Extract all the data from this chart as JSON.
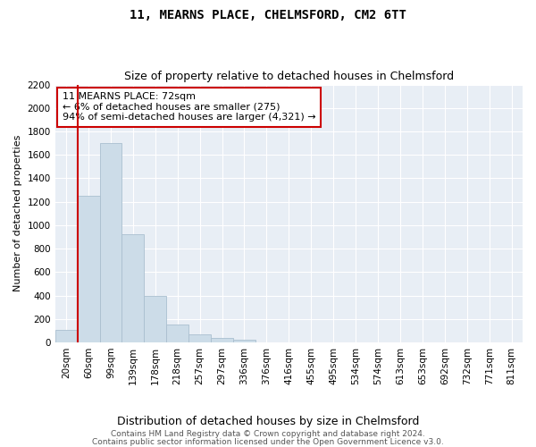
{
  "title": "11, MEARNS PLACE, CHELMSFORD, CM2 6TT",
  "subtitle": "Size of property relative to detached houses in Chelmsford",
  "xlabel": "Distribution of detached houses by size in Chelmsford",
  "ylabel": "Number of detached properties",
  "bar_labels": [
    "20sqm",
    "60sqm",
    "99sqm",
    "139sqm",
    "178sqm",
    "218sqm",
    "257sqm",
    "297sqm",
    "336sqm",
    "376sqm",
    "416sqm",
    "455sqm",
    "495sqm",
    "534sqm",
    "574sqm",
    "613sqm",
    "653sqm",
    "692sqm",
    "732sqm",
    "771sqm",
    "811sqm"
  ],
  "bar_values": [
    110,
    1250,
    1700,
    925,
    400,
    150,
    65,
    40,
    25,
    0,
    0,
    0,
    0,
    0,
    0,
    0,
    0,
    0,
    0,
    0,
    0
  ],
  "bar_color": "#ccdce8",
  "bar_edgecolor": "#aabfcf",
  "vline_color": "#cc0000",
  "vline_pos": 0.5,
  "ylim": [
    0,
    2200
  ],
  "yticks": [
    0,
    200,
    400,
    600,
    800,
    1000,
    1200,
    1400,
    1600,
    1800,
    2000,
    2200
  ],
  "annotation_text": "11 MEARNS PLACE: 72sqm\n← 6% of detached houses are smaller (275)\n94% of semi-detached houses are larger (4,321) →",
  "annotation_box_facecolor": "#ffffff",
  "annotation_box_edgecolor": "#cc0000",
  "footnote1": "Contains HM Land Registry data © Crown copyright and database right 2024.",
  "footnote2": "Contains public sector information licensed under the Open Government Licence v3.0.",
  "bg_color": "#ffffff",
  "plot_bg_color": "#e8eef5",
  "grid_color": "#ffffff",
  "title_fontsize": 10,
  "subtitle_fontsize": 9,
  "xlabel_fontsize": 9,
  "ylabel_fontsize": 8,
  "tick_fontsize": 7.5,
  "annotation_fontsize": 8,
  "footnote_fontsize": 6.5
}
